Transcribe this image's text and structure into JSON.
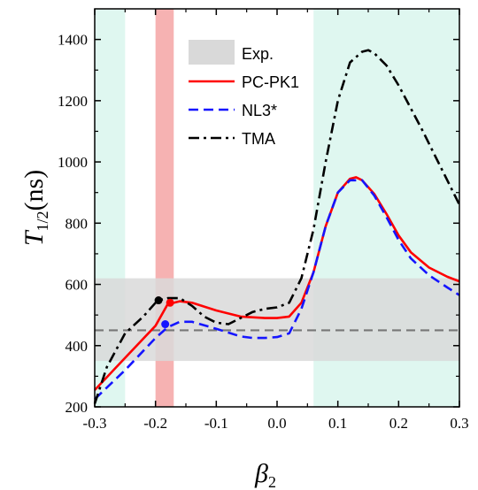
{
  "chart_data": {
    "type": "line",
    "xlabel": "β",
    "xlabel_sub": "2",
    "ylabel": "T",
    "ylabel_sub": "1/2",
    "ylabel_unit": "(ns)",
    "xlim": [
      -0.3,
      0.3
    ],
    "ylim": [
      200,
      1500
    ],
    "x_ticks": [
      "-0.3",
      "-0.2",
      "-0.1",
      "0.0",
      "0.1",
      "0.2",
      "0.3"
    ],
    "y_ticks": [
      "200",
      "400",
      "600",
      "800",
      "1000",
      "1200",
      "1400"
    ],
    "shaded_regions": [
      {
        "x_from": -0.3,
        "x_to": -0.25,
        "color": "#dff7f0"
      },
      {
        "x_from": 0.06,
        "x_to": 0.3,
        "color": "#dff7f0"
      },
      {
        "x_from": -0.2,
        "x_to": -0.17,
        "color": "#f6b2b2"
      }
    ],
    "exp_band": {
      "y_from": 350,
      "y_to": 620,
      "mean": 450,
      "color": "#d9d9d9"
    },
    "legend": {
      "placement": "top-left",
      "entries": [
        "Exp.",
        "PC-PK1",
        "NL3*",
        "TMA"
      ]
    },
    "series": [
      {
        "name": "PC-PK1",
        "color": "#ff0000",
        "style": "solid",
        "x": [
          -0.3,
          -0.25,
          -0.2,
          -0.18,
          -0.16,
          -0.14,
          -0.1,
          -0.06,
          -0.02,
          0.0,
          0.02,
          0.04,
          0.06,
          0.08,
          0.1,
          0.12,
          0.13,
          0.14,
          0.16,
          0.18,
          0.2,
          0.22,
          0.25,
          0.28,
          0.3
        ],
        "y": [
          255,
          360,
          465,
          535,
          545,
          540,
          515,
          495,
          490,
          490,
          495,
          540,
          640,
          790,
          900,
          945,
          950,
          940,
          895,
          830,
          760,
          705,
          655,
          625,
          610
        ]
      },
      {
        "name": "NL3*",
        "color": "#1515ff",
        "style": "dashed",
        "x": [
          -0.3,
          -0.25,
          -0.2,
          -0.18,
          -0.16,
          -0.14,
          -0.1,
          -0.06,
          -0.04,
          -0.02,
          0.0,
          0.02,
          0.04,
          0.06,
          0.08,
          0.1,
          0.12,
          0.14,
          0.16,
          0.18,
          0.2,
          0.22,
          0.25,
          0.28,
          0.3
        ],
        "y": [
          225,
          320,
          425,
          460,
          478,
          478,
          455,
          430,
          425,
          425,
          428,
          440,
          520,
          640,
          790,
          900,
          940,
          940,
          890,
          820,
          745,
          685,
          630,
          590,
          565
        ]
      },
      {
        "name": "TMA",
        "color": "#000000",
        "style": "dashdot",
        "x": [
          -0.3,
          -0.28,
          -0.25,
          -0.22,
          -0.2,
          -0.19,
          -0.18,
          -0.16,
          -0.14,
          -0.12,
          -0.1,
          -0.08,
          -0.06,
          -0.04,
          -0.02,
          0.0,
          0.02,
          0.04,
          0.06,
          0.08,
          0.1,
          0.12,
          0.14,
          0.15,
          0.16,
          0.18,
          0.2,
          0.22,
          0.24,
          0.26,
          0.28,
          0.3
        ],
        "y": [
          210,
          330,
          440,
          495,
          540,
          550,
          555,
          555,
          530,
          495,
          475,
          470,
          490,
          510,
          520,
          525,
          540,
          620,
          780,
          1000,
          1200,
          1325,
          1360,
          1365,
          1355,
          1315,
          1250,
          1175,
          1100,
          1020,
          940,
          860
        ]
      }
    ],
    "markers": [
      {
        "series": "TMA",
        "x": -0.195,
        "y": 548,
        "color": "#000000"
      },
      {
        "series": "PC-PK1",
        "x": -0.176,
        "y": 540,
        "color": "#ff0000"
      },
      {
        "series": "NL3*",
        "x": -0.184,
        "y": 470,
        "color": "#1515ff"
      }
    ],
    "grid": false
  }
}
